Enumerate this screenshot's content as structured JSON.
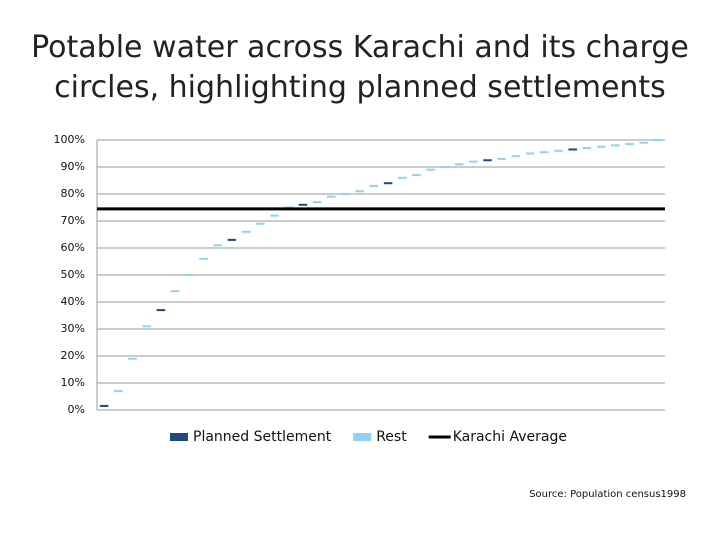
{
  "chart_data": {
    "type": "bar",
    "title": "Potable water across Karachi and its charge circles, highlighting planned settlements",
    "source": "Source: Population census1998",
    "categories": [
      null,
      null,
      null,
      null,
      null,
      null,
      null,
      null,
      null,
      null,
      null,
      null,
      null,
      null,
      null,
      null,
      null,
      null,
      null,
      null,
      null,
      null,
      null,
      null,
      null,
      null,
      null,
      null,
      null,
      null,
      null,
      null,
      null,
      null,
      null,
      null,
      null,
      null,
      null,
      null
    ],
    "series": [
      {
        "name": "Planned Settlement",
        "color": "#1f497d",
        "values": [
          1.5,
          null,
          null,
          null,
          37,
          null,
          null,
          null,
          null,
          63,
          null,
          null,
          null,
          null,
          76,
          null,
          null,
          null,
          null,
          null,
          84,
          null,
          null,
          null,
          null,
          null,
          null,
          92.5,
          null,
          null,
          null,
          null,
          null,
          96.5,
          null,
          null,
          null,
          null,
          null,
          null
        ]
      },
      {
        "name": "Rest",
        "color": "#8fd3f0",
        "values": [
          null,
          7,
          19,
          31,
          null,
          44,
          50,
          56,
          61,
          null,
          66,
          69,
          72,
          75,
          null,
          77,
          79,
          80,
          81,
          83,
          null,
          86,
          87,
          89,
          90,
          91,
          92,
          null,
          93,
          94,
          95,
          95.5,
          96,
          null,
          97,
          97.5,
          98,
          98.5,
          99,
          100
        ]
      }
    ],
    "reference_lines": [
      {
        "name": "Karachi Average",
        "value": 74.5,
        "color": "#000000"
      }
    ],
    "ylim": [
      0,
      100
    ],
    "yticks": [
      {
        "value": 0,
        "label": "0%"
      },
      {
        "value": 10,
        "label": "10%"
      },
      {
        "value": 20,
        "label": "20%"
      },
      {
        "value": 30,
        "label": "30%"
      },
      {
        "value": 40,
        "label": "40%"
      },
      {
        "value": 50,
        "label": "50%"
      },
      {
        "value": 60,
        "label": "60%"
      },
      {
        "value": 70,
        "label": "70%"
      },
      {
        "value": 80,
        "label": "80%"
      },
      {
        "value": 90,
        "label": "90%"
      },
      {
        "value": 100,
        "label": "100%"
      }
    ],
    "grid": true
  }
}
